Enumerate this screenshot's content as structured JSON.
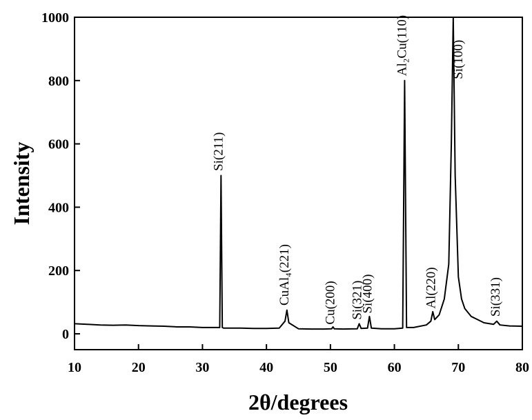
{
  "chart_data": {
    "type": "line",
    "xlabel": "2θ/degrees",
    "ylabel": "Intensity",
    "x": [
      10,
      12,
      14,
      16,
      18,
      20,
      22,
      24,
      26,
      28,
      30,
      32,
      32.7,
      32.9,
      33.1,
      33.3,
      34,
      36,
      38,
      40,
      42,
      42.9,
      43.2,
      43.5,
      45,
      47,
      49,
      50.2,
      50.4,
      50.6,
      52,
      54.2,
      54.5,
      54.8,
      55.8,
      56.1,
      56.4,
      58,
      60,
      61.3,
      61.6,
      61.9,
      63,
      65,
      65.7,
      66.0,
      66.3,
      67,
      67.8,
      68.5,
      68.9,
      69.2,
      69.5,
      70,
      70.5,
      71,
      72,
      73,
      74,
      75.5,
      76,
      76.5,
      78,
      80
    ],
    "values": [
      32,
      30,
      28,
      27,
      28,
      26,
      25,
      24,
      22,
      22,
      20,
      20,
      20,
      500,
      20,
      18,
      18,
      18,
      17,
      17,
      18,
      40,
      75,
      35,
      16,
      15,
      15,
      16,
      22,
      16,
      15,
      16,
      32,
      17,
      18,
      55,
      18,
      16,
      16,
      18,
      800,
      20,
      20,
      28,
      40,
      70,
      45,
      60,
      110,
      220,
      600,
      1000,
      500,
      180,
      110,
      80,
      55,
      45,
      35,
      30,
      40,
      28,
      25,
      24
    ],
    "color": "#000000",
    "xlim": [
      10,
      80
    ],
    "xticks": [
      10,
      20,
      30,
      40,
      50,
      60,
      70,
      80
    ],
    "ylim": [
      -50,
      1000
    ],
    "yticks": [
      0,
      200,
      400,
      600,
      800,
      1000
    ],
    "annotations": [
      {
        "text": "Si(211)",
        "x": 32.7,
        "y": 510
      },
      {
        "text": "CuAl₄(221)",
        "x": 43.0,
        "y": 85
      },
      {
        "text": "Cu(200)",
        "x": 50.2,
        "y": 25
      },
      {
        "text": "Si(321)",
        "x": 54.4,
        "y": 40
      },
      {
        "text": "Si(400)",
        "x": 56.0,
        "y": 60
      },
      {
        "text": "Al₂Cu(110)",
        "x": 61.4,
        "y": 810
      },
      {
        "text": "Al(220)",
        "x": 65.9,
        "y": 75
      },
      {
        "text": "Si(100)",
        "x": 70.2,
        "y": 800
      },
      {
        "text": "Si(331)",
        "x": 76.0,
        "y": 50
      }
    ]
  }
}
